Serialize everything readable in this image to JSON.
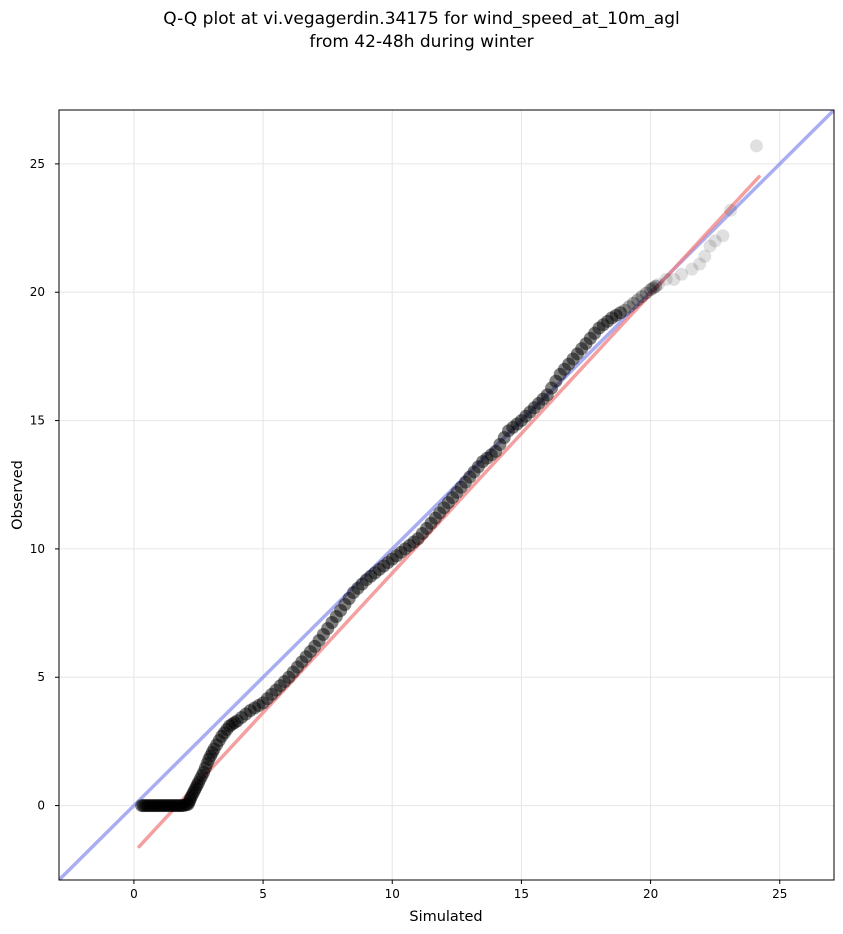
{
  "figure": {
    "title_line1": "Q-Q plot at vi.vegagerdin.34175 for wind_speed_at_10m_agl",
    "title_line2": "from 42-48h during winter"
  },
  "chart_data": {
    "type": "scatter",
    "xlabel": "Simulated",
    "ylabel": "Observed",
    "xlim": [
      -2.9,
      27.1
    ],
    "ylim": [
      -2.9,
      27.1
    ],
    "xticks": [
      0,
      5,
      10,
      15,
      20,
      25
    ],
    "yticks": [
      0,
      5,
      10,
      15,
      20,
      25
    ],
    "grid": true,
    "colors": {
      "points": "#000000",
      "identity_line": "#6f78e8",
      "fit_line": "#f08080",
      "background": "#ffffff"
    },
    "quantiles": {
      "simulated": [
        0.3,
        0.5,
        0.7,
        0.9,
        1.1,
        1.3,
        1.5,
        1.7,
        1.9,
        2.1,
        2.2,
        2.35,
        2.5,
        2.7,
        2.9,
        3.1,
        3.4,
        3.7,
        4.0,
        4.5,
        5.0,
        5.5,
        6.0,
        6.5,
        7.0,
        7.5,
        8.0,
        8.5,
        9.0,
        9.5,
        10.0,
        10.5,
        11.0,
        11.5,
        12.0,
        12.5,
        13.0,
        13.5,
        14.0,
        14.5,
        15.0,
        15.5,
        16.0,
        16.5,
        17.0,
        17.5,
        18.0,
        18.5,
        19.0,
        19.5,
        20.0,
        20.3,
        20.6,
        20.9,
        21.2,
        21.6,
        21.9,
        22.1,
        22.3,
        22.5,
        22.8,
        23.1,
        24.1
      ],
      "observed": [
        0.0,
        0.0,
        0.0,
        0.0,
        0.0,
        0.0,
        0.0,
        0.0,
        0.0,
        0.05,
        0.3,
        0.6,
        0.9,
        1.3,
        1.8,
        2.2,
        2.7,
        3.1,
        3.3,
        3.7,
        4.0,
        4.5,
        5.0,
        5.6,
        6.2,
        6.9,
        7.6,
        8.3,
        8.8,
        9.2,
        9.6,
        10.0,
        10.4,
        11.0,
        11.6,
        12.2,
        12.8,
        13.4,
        13.8,
        14.6,
        15.0,
        15.5,
        16.0,
        16.8,
        17.4,
        18.0,
        18.6,
        19.0,
        19.3,
        19.7,
        20.1,
        20.3,
        20.5,
        20.5,
        20.7,
        20.9,
        21.1,
        21.4,
        21.8,
        22.0,
        22.2,
        23.2,
        25.7
      ]
    },
    "identity_line": {
      "from": [
        -3,
        -3
      ],
      "to": [
        27.2,
        27.2
      ]
    },
    "fit_line": {
      "from": [
        0.2,
        -1.6
      ],
      "to": [
        24.2,
        24.5
      ]
    }
  }
}
